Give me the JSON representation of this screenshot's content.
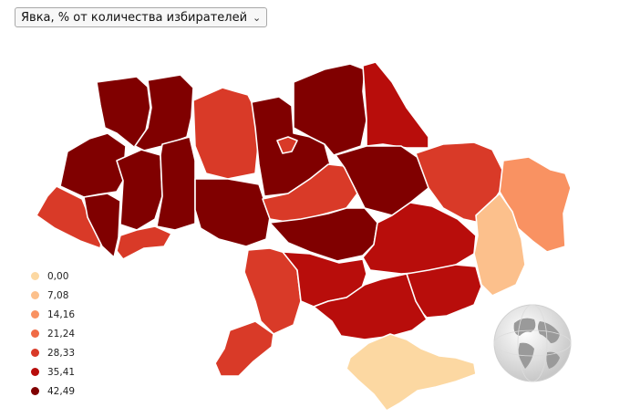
{
  "selector": {
    "selected": "Явка, % от количества избирателей",
    "chevron_icon": "chevron-down-icon"
  },
  "colors": {
    "level0": "#fcd8a2",
    "level1": "#fcc08c",
    "level2": "#f99262",
    "level3": "#f06a45",
    "level4": "#d93a28",
    "level5": "#b80d0b",
    "level6": "#800000"
  },
  "legend": [
    {
      "label": "0,00",
      "color": "#fcd8a2"
    },
    {
      "label": "7,08",
      "color": "#fcc08c"
    },
    {
      "label": "14,16",
      "color": "#f99262"
    },
    {
      "label": "21,24",
      "color": "#f06a45"
    },
    {
      "label": "28,33",
      "color": "#d93a28"
    },
    {
      "label": "35,41",
      "color": "#b80d0b"
    },
    {
      "label": "42,49",
      "color": "#800000"
    }
  ],
  "globe_icon": "globe-icon"
}
